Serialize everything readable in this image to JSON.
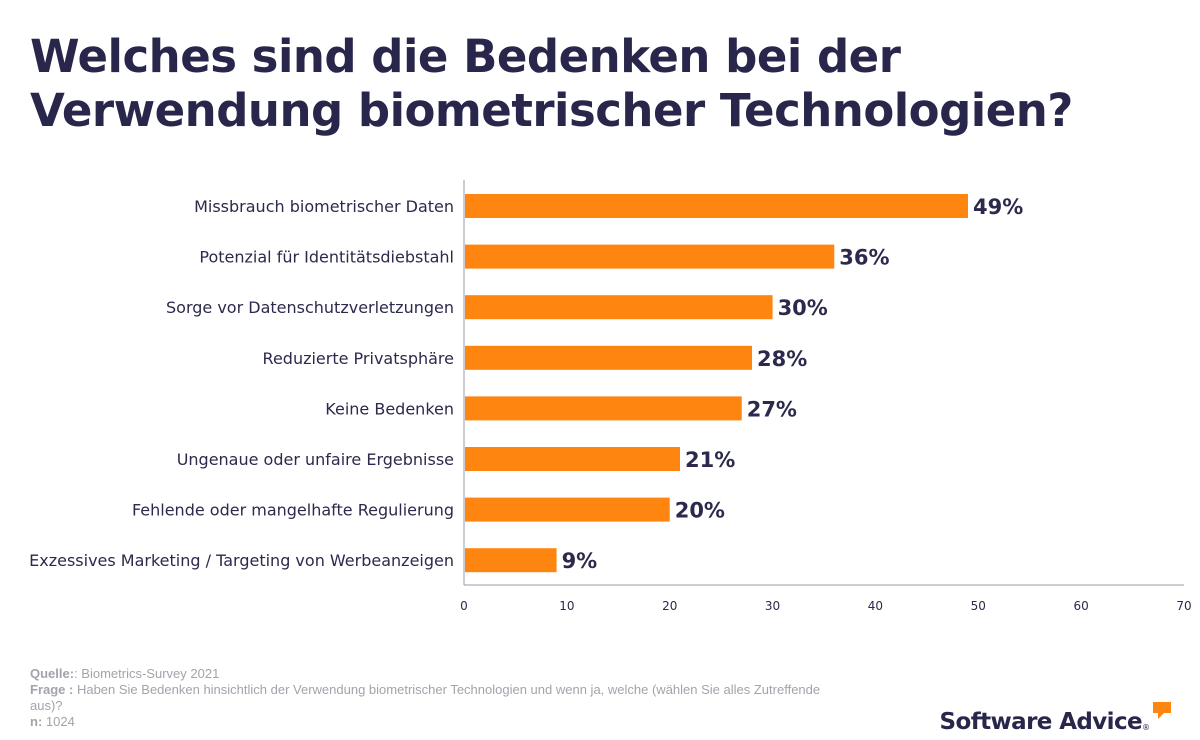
{
  "title": "Welches sind die Bedenken bei der Verwendung biometrischer Technologien?",
  "colors": {
    "bar": "#fe850f",
    "text": "#2b2a4c",
    "axis": "#9a9aa6",
    "footer": "#a3a3ab",
    "brand_icon": "#fe850f"
  },
  "chart_data": {
    "type": "bar",
    "orientation": "horizontal",
    "categories": [
      "Missbrauch biometrischer Daten",
      "Potenzial für Identitätsdiebstahl",
      "Sorge vor Datenschutzverletzungen",
      "Reduzierte Privatsphäre",
      "Keine Bedenken",
      "Ungenaue oder unfaire Ergebnisse",
      "Fehlende oder mangelhafte Regulierung",
      "Exzessives Marketing / Targeting von Werbeanzeigen"
    ],
    "values": [
      49,
      36,
      30,
      28,
      27,
      21,
      20,
      9
    ],
    "value_labels": [
      "49%",
      "36%",
      "30%",
      "28%",
      "27%",
      "21%",
      "20%",
      "9%"
    ],
    "xlim": [
      0,
      70
    ],
    "xticks": [
      0,
      10,
      20,
      30,
      40,
      50,
      60,
      70
    ],
    "xlabel": "",
    "ylabel": "",
    "grid": false,
    "legend": "none"
  },
  "footer": {
    "source_label": "Quelle:",
    "source_text": ": Biometrics-Survey 2021",
    "question_label": "Frage :",
    "question_text": " Haben Sie Bedenken hinsichtlich der Verwendung biometrischer Technologien und wenn ja, welche (wählen Sie alles Zutreffende aus)?",
    "n_label": "n:",
    "n_text": " 1024"
  },
  "brand": {
    "name": "Software Advice",
    "reg": "®",
    "icon": "speech-bubble-icon"
  }
}
